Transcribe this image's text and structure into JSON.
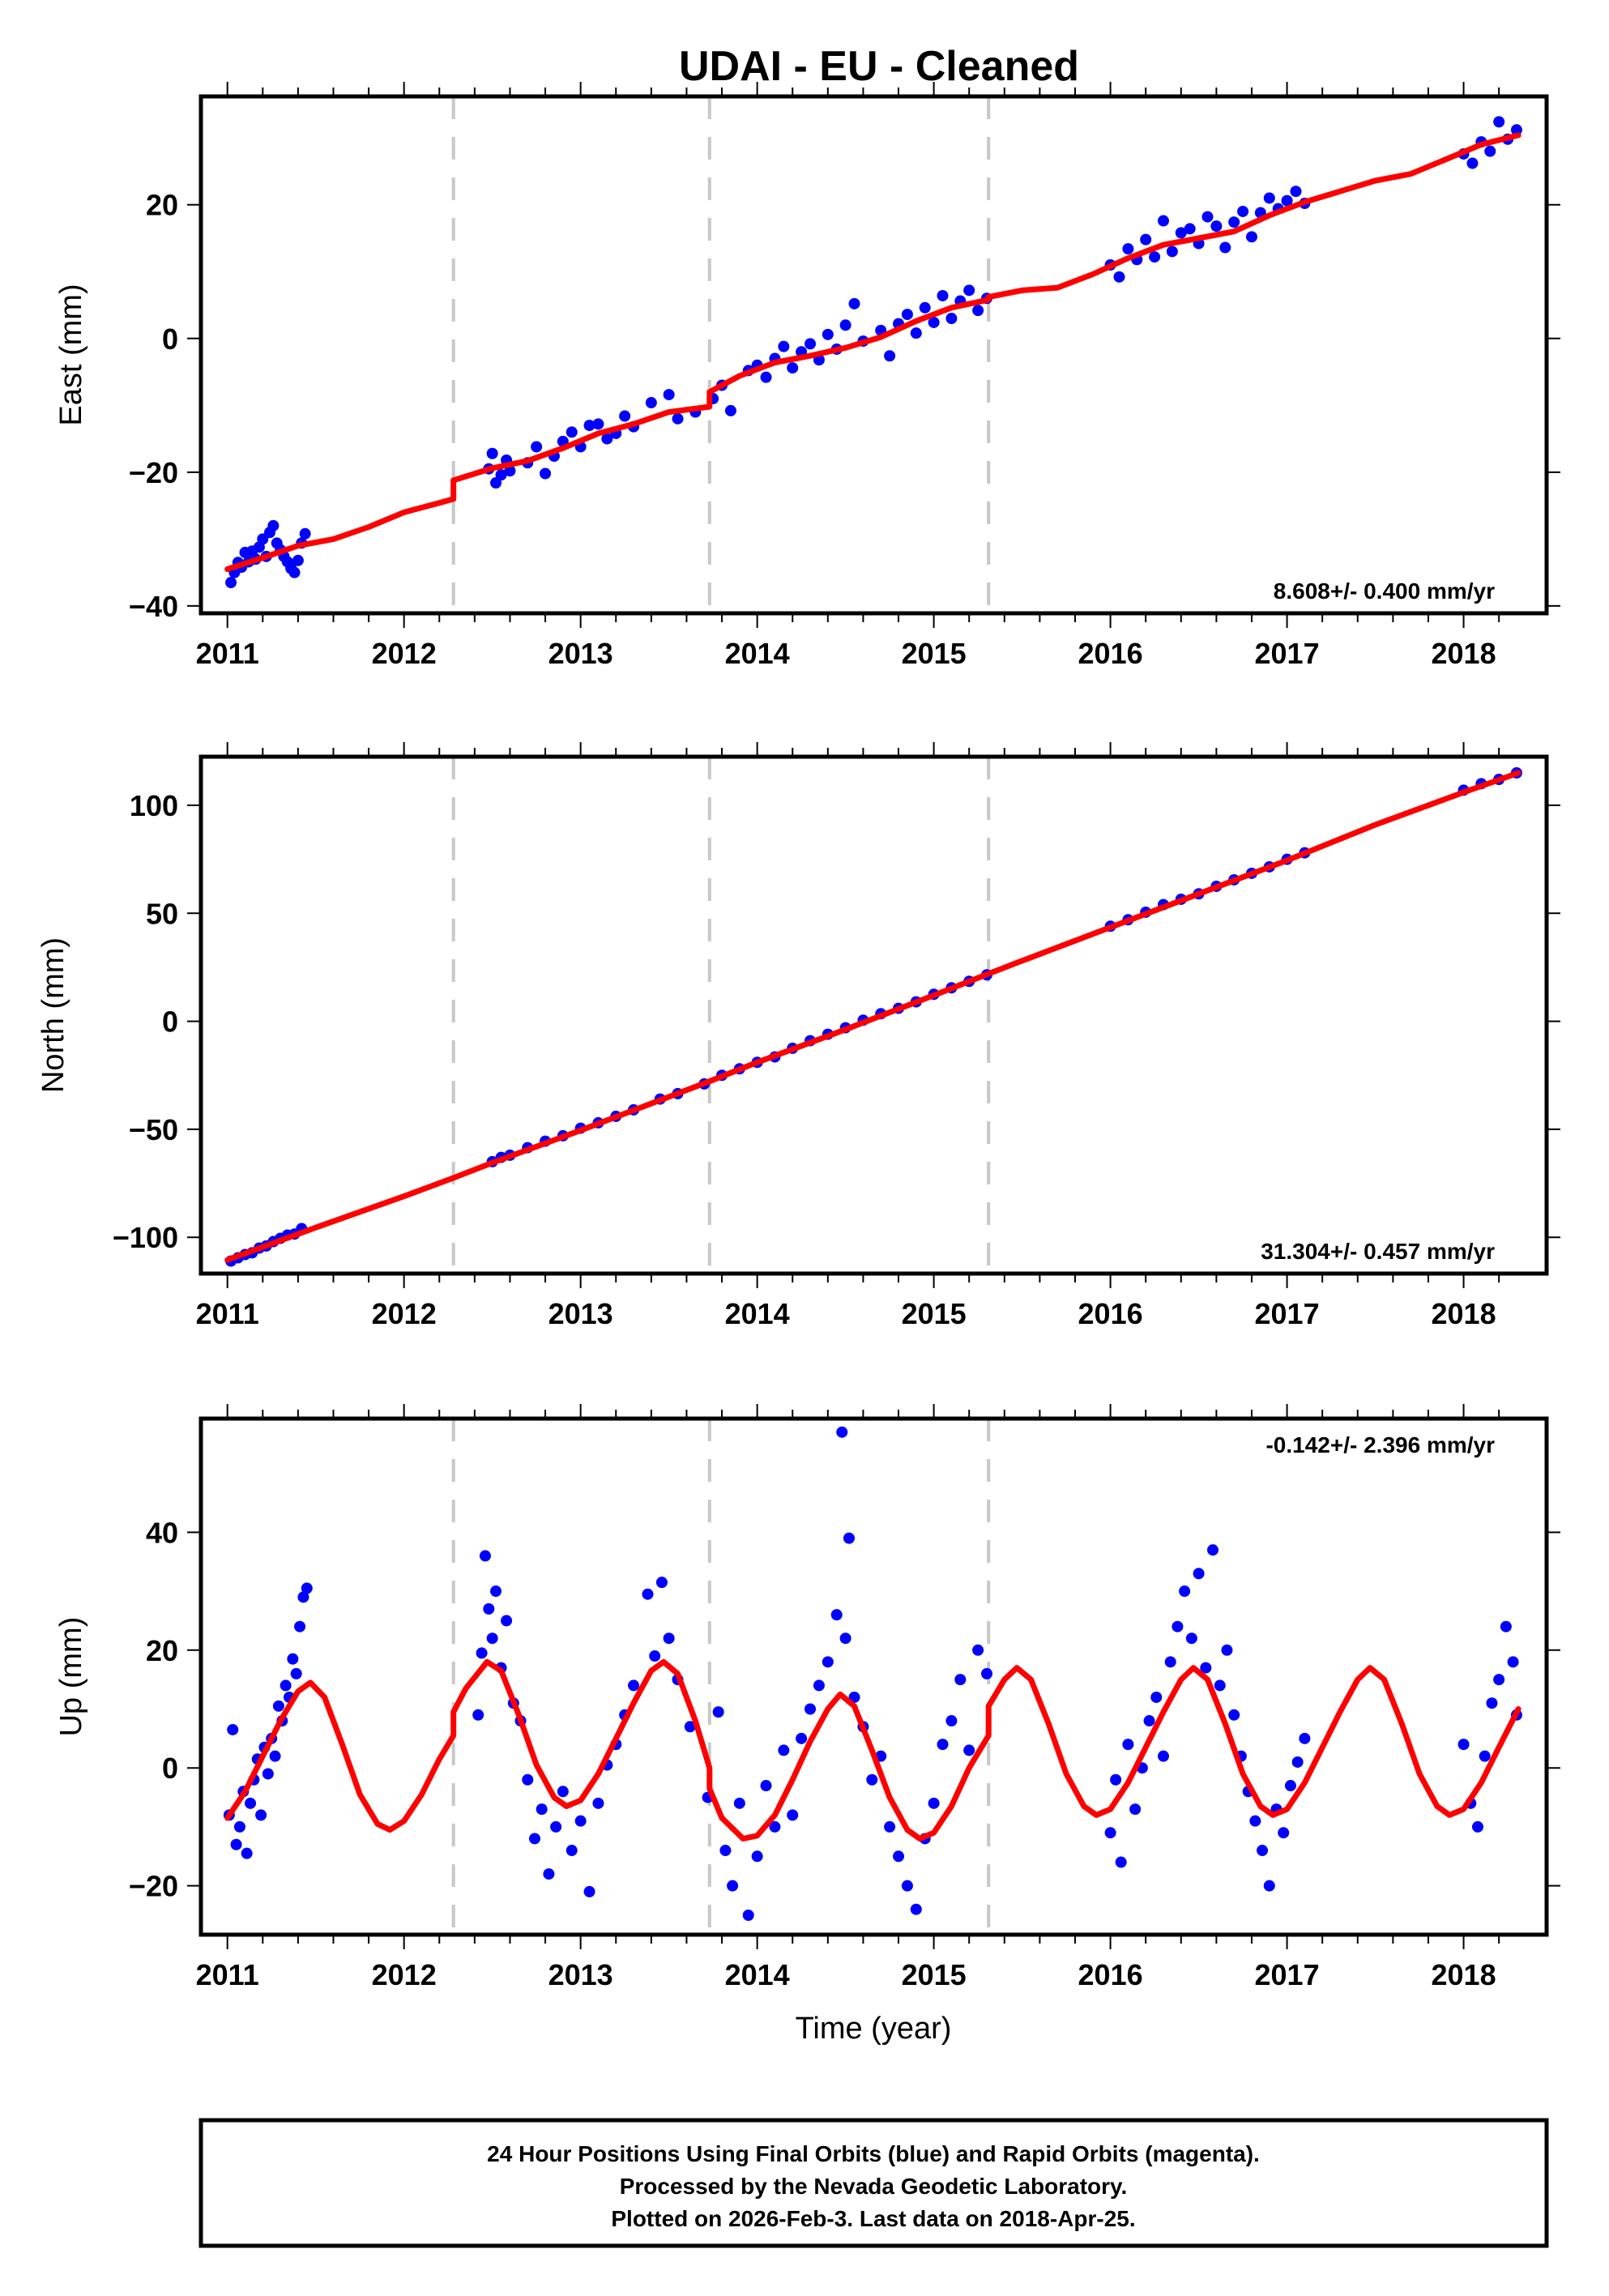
{
  "chart_data": [
    {
      "type": "scatter",
      "title": "UDAI  - EU - Cleaned",
      "xlabel": "",
      "ylabel": "East (mm)",
      "xlim": [
        2010.85,
        2018.47
      ],
      "ylim": [
        -41.1,
        36.2
      ],
      "xticks": [
        2011,
        2012,
        2013,
        2014,
        2015,
        2016,
        2017,
        2018
      ],
      "xtick_labels": [
        "2011",
        "2012",
        "2013",
        "2014",
        "2015",
        "2016",
        "2017",
        "2018"
      ],
      "yticks": [
        -40,
        -20,
        0,
        20
      ],
      "ytick_labels": [
        "−40",
        "−20",
        "0",
        "20"
      ],
      "annotation": "8.608+/- 0.400 mm/yr",
      "annotation_position": "bottom-right",
      "grid": false,
      "offset_epochs": [
        2012.28,
        2013.73,
        2015.31
      ],
      "model": {
        "name": "fit",
        "x": [
          2011.0,
          2011.2,
          2011.4,
          2011.6,
          2011.8,
          2012.0,
          2012.2,
          2012.28,
          2012.28,
          2012.5,
          2012.7,
          2012.9,
          2013.1,
          2013.3,
          2013.5,
          2013.73,
          2013.73,
          2013.9,
          2014.1,
          2014.3,
          2014.5,
          2014.7,
          2014.9,
          2015.1,
          2015.31,
          2015.31,
          2015.5,
          2015.7,
          2015.9,
          2016.1,
          2016.3,
          2016.5,
          2016.7,
          2016.9,
          2017.1,
          2017.3,
          2017.5,
          2017.7,
          2017.9,
          2018.1,
          2018.31
        ],
        "y": [
          -34.5,
          -32.8,
          -31.0,
          -30.0,
          -28.2,
          -26.0,
          -24.6,
          -24.0,
          -21.2,
          -19.4,
          -18.3,
          -16.4,
          -14.2,
          -12.8,
          -11.0,
          -10.2,
          -8.0,
          -5.6,
          -3.6,
          -2.6,
          -1.4,
          0.2,
          2.6,
          4.6,
          5.8,
          6.2,
          7.2,
          7.6,
          9.6,
          12.0,
          14.0,
          15.0,
          16.0,
          18.4,
          20.4,
          22.0,
          23.6,
          24.6,
          26.8,
          29.0,
          30.4
        ]
      },
      "observations": {
        "name": "Final Orbits",
        "x": [
          2011.02,
          2011.04,
          2011.06,
          2011.08,
          2011.1,
          2011.12,
          2011.14,
          2011.16,
          2011.18,
          2011.2,
          2011.22,
          2011.24,
          2011.26,
          2011.28,
          2011.3,
          2011.32,
          2011.34,
          2011.36,
          2011.38,
          2011.4,
          2011.42,
          2011.44,
          2012.48,
          2012.5,
          2012.52,
          2012.55,
          2012.58,
          2012.6,
          2012.7,
          2012.75,
          2012.8,
          2012.85,
          2012.9,
          2012.95,
          2013.0,
          2013.05,
          2013.1,
          2013.15,
          2013.2,
          2013.25,
          2013.3,
          2013.4,
          2013.5,
          2013.55,
          2013.65,
          2013.75,
          2013.8,
          2013.85,
          2013.95,
          2014.0,
          2014.05,
          2014.1,
          2014.15,
          2014.2,
          2014.25,
          2014.3,
          2014.35,
          2014.4,
          2014.45,
          2014.5,
          2014.55,
          2014.6,
          2014.7,
          2014.75,
          2014.8,
          2014.85,
          2014.9,
          2014.95,
          2015.0,
          2015.05,
          2015.1,
          2015.15,
          2015.2,
          2015.25,
          2015.3,
          2016.0,
          2016.05,
          2016.1,
          2016.15,
          2016.2,
          2016.25,
          2016.3,
          2016.35,
          2016.4,
          2016.45,
          2016.5,
          2016.55,
          2016.6,
          2016.65,
          2016.7,
          2016.75,
          2016.8,
          2016.85,
          2016.9,
          2016.95,
          2017.0,
          2017.05,
          2017.1,
          2018.0,
          2018.05,
          2018.1,
          2018.15,
          2018.2,
          2018.25,
          2018.3
        ],
        "y": [
          -36.5,
          -35.0,
          -33.5,
          -34.2,
          -32.0,
          -33.4,
          -31.8,
          -33.0,
          -31.2,
          -30.0,
          -32.6,
          -29.0,
          -28.0,
          -30.6,
          -31.6,
          -32.6,
          -33.4,
          -34.4,
          -35.0,
          -33.2,
          -30.6,
          -29.2,
          -19.5,
          -17.2,
          -21.6,
          -20.4,
          -18.2,
          -19.8,
          -18.6,
          -16.2,
          -20.2,
          -17.6,
          -15.4,
          -14.0,
          -16.2,
          -13.0,
          -12.8,
          -15.0,
          -14.2,
          -11.6,
          -13.2,
          -9.6,
          -8.4,
          -12.0,
          -11.0,
          -9.0,
          -7.0,
          -10.8,
          -4.8,
          -4.0,
          -5.8,
          -3.0,
          -1.2,
          -4.4,
          -2.0,
          -0.8,
          -3.2,
          0.6,
          -1.6,
          2.0,
          5.2,
          -0.4,
          1.2,
          -2.6,
          2.2,
          3.6,
          0.8,
          4.6,
          2.4,
          6.4,
          3.0,
          5.6,
          7.2,
          4.2,
          6.0,
          11.0,
          9.2,
          13.4,
          11.8,
          14.8,
          12.2,
          17.6,
          13.0,
          15.8,
          16.4,
          14.2,
          18.2,
          16.8,
          13.6,
          17.4,
          19.0,
          15.2,
          18.8,
          21.0,
          19.4,
          20.6,
          22.0,
          20.2,
          27.6,
          26.2,
          29.4,
          28.0,
          32.4,
          29.8,
          31.2
        ]
      }
    },
    {
      "type": "scatter",
      "xlabel": "",
      "ylabel": "North (mm)",
      "xlim": [
        2010.85,
        2018.47
      ],
      "ylim": [
        -116.8,
        122.5
      ],
      "xticks": [
        2011,
        2012,
        2013,
        2014,
        2015,
        2016,
        2017,
        2018
      ],
      "xtick_labels": [
        "2011",
        "2012",
        "2013",
        "2014",
        "2015",
        "2016",
        "2017",
        "2018"
      ],
      "yticks": [
        -100,
        -50,
        0,
        50,
        100
      ],
      "ytick_labels": [
        "−100",
        "−50",
        "0",
        "50",
        "100"
      ],
      "annotation": "31.304+/- 0.457 mm/yr",
      "annotation_position": "bottom-right",
      "grid": false,
      "offset_epochs": [
        2012.28,
        2013.73,
        2015.31
      ],
      "model": {
        "name": "fit",
        "x": [
          2011.0,
          2011.5,
          2012.0,
          2012.28,
          2012.5,
          2013.0,
          2013.5,
          2013.73,
          2014.0,
          2014.5,
          2015.0,
          2015.31,
          2015.5,
          2016.0,
          2016.5,
          2017.0,
          2017.5,
          2018.0,
          2018.31
        ],
        "y": [
          -110.5,
          -95.5,
          -81.0,
          -72.5,
          -65.5,
          -50.5,
          -35.0,
          -27.8,
          -19.0,
          -3.8,
          12.0,
          22.0,
          28.0,
          43.5,
          59.0,
          74.5,
          91.0,
          106.0,
          115.0
        ]
      },
      "observations": {
        "name": "Final Orbits",
        "x": [
          2011.02,
          2011.06,
          2011.1,
          2011.14,
          2011.18,
          2011.22,
          2011.26,
          2011.3,
          2011.34,
          2011.38,
          2011.42,
          2012.5,
          2012.55,
          2012.6,
          2012.7,
          2012.8,
          2012.9,
          2013.0,
          2013.1,
          2013.2,
          2013.3,
          2013.45,
          2013.55,
          2013.7,
          2013.8,
          2013.9,
          2014.0,
          2014.1,
          2014.2,
          2014.3,
          2014.4,
          2014.5,
          2014.6,
          2014.7,
          2014.8,
          2014.9,
          2015.0,
          2015.1,
          2015.2,
          2015.3,
          2016.0,
          2016.1,
          2016.2,
          2016.3,
          2016.4,
          2016.5,
          2016.6,
          2016.7,
          2016.8,
          2016.9,
          2017.0,
          2017.1,
          2018.0,
          2018.1,
          2018.2,
          2018.3
        ],
        "y": [
          -111.0,
          -109.5,
          -108.0,
          -107.2,
          -105.0,
          -104.0,
          -102.0,
          -100.5,
          -99.0,
          -98.5,
          -96.0,
          -65.0,
          -63.0,
          -62.0,
          -58.5,
          -55.5,
          -53.0,
          -49.5,
          -47.0,
          -44.0,
          -41.0,
          -36.0,
          -33.5,
          -29.0,
          -25.0,
          -22.0,
          -19.0,
          -16.5,
          -12.5,
          -9.0,
          -6.0,
          -3.0,
          0.5,
          3.5,
          6.0,
          9.0,
          12.5,
          15.5,
          18.5,
          21.5,
          44.0,
          47.0,
          50.5,
          54.0,
          56.5,
          59.0,
          62.5,
          65.5,
          68.5,
          71.5,
          75.0,
          78.0,
          107.0,
          110.0,
          112.0,
          115.0
        ]
      }
    },
    {
      "type": "scatter",
      "xlabel": "Time (year)",
      "ylabel": "Up (mm)",
      "xlim": [
        2010.85,
        2018.47
      ],
      "ylim": [
        -28.3,
        59.3
      ],
      "xticks": [
        2011,
        2012,
        2013,
        2014,
        2015,
        2016,
        2017,
        2018
      ],
      "xtick_labels": [
        "2011",
        "2012",
        "2013",
        "2014",
        "2015",
        "2016",
        "2017",
        "2018"
      ],
      "yticks": [
        -20,
        0,
        20,
        40
      ],
      "ytick_labels": [
        "−20",
        "0",
        "20",
        "40"
      ],
      "annotation": "-0.142+/- 2.396 mm/yr",
      "annotation_position": "top-right",
      "grid": false,
      "offset_epochs": [
        2012.28,
        2013.73,
        2015.31
      ],
      "model": {
        "name": "fit",
        "x": [
          2011.0,
          2011.1,
          2011.2,
          2011.3,
          2011.4,
          2011.47,
          2011.55,
          2011.65,
          2011.75,
          2011.85,
          2011.92,
          2012.0,
          2012.1,
          2012.2,
          2012.28,
          2012.28,
          2012.35,
          2012.47,
          2012.55,
          2012.65,
          2012.75,
          2012.85,
          2012.92,
          2013.0,
          2013.1,
          2013.2,
          2013.3,
          2013.4,
          2013.47,
          2013.55,
          2013.65,
          2013.73,
          2013.73,
          2013.8,
          2013.92,
          2014.0,
          2014.1,
          2014.2,
          2014.3,
          2014.4,
          2014.47,
          2014.55,
          2014.65,
          2014.75,
          2014.85,
          2014.92,
          2015.0,
          2015.1,
          2015.2,
          2015.31,
          2015.31,
          2015.4,
          2015.47,
          2015.55,
          2015.65,
          2015.75,
          2015.85,
          2015.92,
          2016.0,
          2016.1,
          2016.2,
          2016.3,
          2016.4,
          2016.47,
          2016.55,
          2016.65,
          2016.75,
          2016.85,
          2016.92,
          2017.0,
          2017.1,
          2017.2,
          2017.3,
          2017.4,
          2017.47,
          2017.55,
          2017.65,
          2017.75,
          2017.85,
          2017.92,
          2018.0,
          2018.1,
          2018.2,
          2018.31
        ],
        "y": [
          -8.5,
          -4.0,
          2.0,
          8.0,
          13.0,
          14.5,
          12.0,
          4.0,
          -4.5,
          -9.5,
          -10.5,
          -9.0,
          -4.5,
          1.5,
          5.5,
          9.5,
          13.5,
          18.0,
          16.5,
          9.0,
          0.5,
          -5.0,
          -6.5,
          -5.5,
          -1.0,
          5.0,
          11.0,
          16.5,
          18.0,
          16.0,
          8.0,
          0.0,
          -3.5,
          -8.5,
          -12.0,
          -11.5,
          -8.0,
          -2.0,
          4.5,
          10.0,
          12.5,
          10.5,
          3.0,
          -5.0,
          -10.5,
          -12.0,
          -11.0,
          -6.5,
          0.0,
          5.5,
          10.5,
          15.0,
          17.0,
          15.0,
          7.5,
          -1.0,
          -6.5,
          -8.0,
          -7.0,
          -2.5,
          3.5,
          9.5,
          15.0,
          17.0,
          15.0,
          7.5,
          -1.0,
          -6.5,
          -8.0,
          -7.0,
          -2.5,
          3.5,
          9.5,
          15.0,
          17.0,
          15.0,
          7.5,
          -1.0,
          -6.5,
          -8.0,
          -7.0,
          -2.5,
          3.5,
          10.0
        ]
      },
      "observations": {
        "name": "Final Orbits",
        "x": [
          2011.01,
          2011.03,
          2011.05,
          2011.07,
          2011.09,
          2011.11,
          2011.13,
          2011.15,
          2011.17,
          2011.19,
          2011.21,
          2011.23,
          2011.25,
          2011.27,
          2011.29,
          2011.31,
          2011.33,
          2011.35,
          2011.37,
          2011.39,
          2011.41,
          2011.43,
          2011.45,
          2012.42,
          2012.44,
          2012.46,
          2012.48,
          2012.5,
          2012.52,
          2012.55,
          2012.58,
          2012.62,
          2012.66,
          2012.7,
          2012.74,
          2012.78,
          2012.82,
          2012.86,
          2012.9,
          2012.95,
          2013.0,
          2013.05,
          2013.1,
          2013.15,
          2013.2,
          2013.25,
          2013.3,
          2013.38,
          2013.42,
          2013.46,
          2013.5,
          2013.55,
          2013.62,
          2013.72,
          2013.78,
          2013.82,
          2013.86,
          2013.9,
          2013.95,
          2014.0,
          2014.05,
          2014.1,
          2014.15,
          2014.2,
          2014.25,
          2014.3,
          2014.35,
          2014.4,
          2014.45,
          2014.48,
          2014.5,
          2014.52,
          2014.55,
          2014.6,
          2014.65,
          2014.7,
          2014.75,
          2014.8,
          2014.85,
          2014.9,
          2014.95,
          2015.0,
          2015.05,
          2015.1,
          2015.15,
          2015.2,
          2015.25,
          2015.3,
          2016.0,
          2016.03,
          2016.06,
          2016.1,
          2016.14,
          2016.18,
          2016.22,
          2016.26,
          2016.3,
          2016.34,
          2016.38,
          2016.42,
          2016.46,
          2016.5,
          2016.54,
          2016.58,
          2016.62,
          2016.66,
          2016.7,
          2016.74,
          2016.78,
          2016.82,
          2016.86,
          2016.9,
          2016.94,
          2016.98,
          2017.02,
          2017.06,
          2017.1,
          2018.0,
          2018.04,
          2018.08,
          2018.12,
          2018.16,
          2018.2,
          2018.24,
          2018.28,
          2018.3
        ],
        "y": [
          -8.0,
          6.5,
          -13.0,
          -10.0,
          -4.0,
          -14.5,
          -6.0,
          -2.0,
          1.5,
          -8.0,
          3.5,
          -1.0,
          5.0,
          2.0,
          10.5,
          8.0,
          14.0,
          12.0,
          18.5,
          16.0,
          24.0,
          29.0,
          30.5,
          9.0,
          19.5,
          36.0,
          27.0,
          22.0,
          30.0,
          17.0,
          25.0,
          11.0,
          8.0,
          -2.0,
          -12.0,
          -7.0,
          -18.0,
          -10.0,
          -4.0,
          -14.0,
          -9.0,
          -21.0,
          -6.0,
          0.5,
          4.0,
          9.0,
          14.0,
          29.5,
          19.0,
          31.5,
          22.0,
          15.0,
          7.0,
          -5.0,
          9.5,
          -14.0,
          -20.0,
          -6.0,
          -25.0,
          -15.0,
          -3.0,
          -10.0,
          3.0,
          -8.0,
          5.0,
          10.0,
          14.0,
          18.0,
          26.0,
          57.0,
          22.0,
          39.0,
          12.0,
          7.0,
          -2.0,
          2.0,
          -10.0,
          -15.0,
          -20.0,
          -24.0,
          -12.0,
          -6.0,
          4.0,
          8.0,
          15.0,
          3.0,
          20.0,
          16.0,
          -11.0,
          -2.0,
          -16.0,
          4.0,
          -7.0,
          0.0,
          8.0,
          12.0,
          2.0,
          18.0,
          24.0,
          30.0,
          22.0,
          33.0,
          17.0,
          37.0,
          14.0,
          20.0,
          9.0,
          2.0,
          -4.0,
          -9.0,
          -14.0,
          -20.0,
          -7.0,
          -11.0,
          -3.0,
          1.0,
          5.0,
          4.0,
          -6.0,
          -10.0,
          2.0,
          11.0,
          15.0,
          24.0,
          18.0,
          9.0
        ]
      }
    }
  ],
  "figure": {
    "title": "UDAI  - EU - Cleaned",
    "colors": {
      "observations": "#0000ff",
      "model": "#ff0000",
      "offset_lines": "#c8c8c8",
      "frame": "#000000"
    }
  },
  "footer": {
    "lines": [
      "24 Hour Positions Using Final Orbits (blue) and Rapid Orbits (magenta).",
      "Processed by the Nevada Geodetic Laboratory.",
      "Plotted on 2026-Feb-3. Last data on 2018-Apr-25."
    ]
  }
}
